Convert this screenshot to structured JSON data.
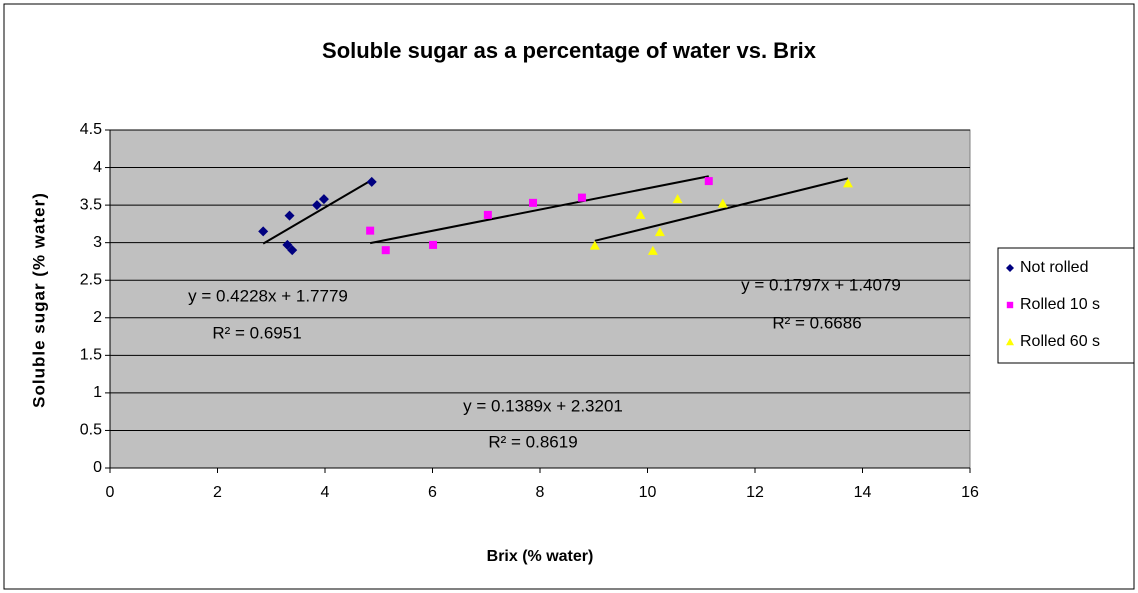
{
  "chart_data": {
    "type": "scatter",
    "title": "Soluble sugar as a percentage of water vs. Brix",
    "x_label": "Brix (% water)",
    "y_label": "Soluble sugar (% water)",
    "xlim": [
      0,
      16
    ],
    "xticks": [
      0,
      2,
      4,
      6,
      8,
      10,
      12,
      14,
      16
    ],
    "ylim": [
      0,
      4.5
    ],
    "yticks": [
      0,
      0.5,
      1,
      1.5,
      2,
      2.5,
      3,
      3.5,
      4,
      4.5
    ],
    "grid": true,
    "legend": "right",
    "series": [
      {
        "name": "Not rolled",
        "color": "#000080",
        "marker": "diamond",
        "x": [
          2.85,
          3.34,
          3.3,
          3.39,
          3.85,
          3.98,
          4.87
        ],
        "values": [
          3.15,
          3.36,
          2.97,
          2.9,
          3.5,
          3.58,
          3.81
        ],
        "trendline_equation": "y = 0.4228x + 1.7779",
        "trendline_r2": "R² = 0.6951"
      },
      {
        "name": "Rolled 10 s",
        "color": "#ff00ff",
        "marker": "square",
        "x": [
          4.84,
          5.13,
          6.01,
          7.03,
          7.87,
          8.78,
          11.14
        ],
        "values": [
          3.16,
          2.9,
          2.97,
          3.37,
          3.53,
          3.6,
          3.82
        ],
        "trendline_equation": "y = 0.1389x + 2.3201",
        "trendline_r2": "R² = 0.8619"
      },
      {
        "name": "Rolled 60 s",
        "color": "#ffff00",
        "marker": "triangle",
        "x": [
          9.02,
          9.87,
          10.1,
          10.23,
          10.56,
          11.4,
          13.73
        ],
        "values": [
          2.96,
          3.37,
          2.89,
          3.14,
          3.58,
          3.52,
          3.79
        ],
        "trendline_equation": "y = 0.1797x + 1.4079",
        "trendline_r2": "R² = 0.6686"
      }
    ]
  }
}
